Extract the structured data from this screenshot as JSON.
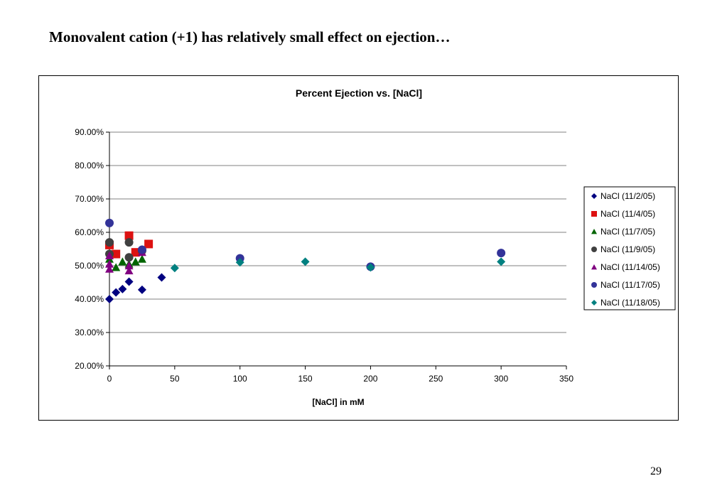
{
  "slide": {
    "title": "Monovalent cation (+1) has relatively small effect on ejection…",
    "page_number": "29"
  },
  "chart_data": {
    "type": "scatter",
    "title": "Percent Ejection vs. [NaCl]",
    "xlabel": "[NaCl] in mM",
    "ylabel": "",
    "xlim": [
      0,
      350
    ],
    "ylim": [
      0.2,
      0.9
    ],
    "x_ticks": [
      0,
      50,
      100,
      150,
      200,
      250,
      300,
      350
    ],
    "y_ticks": [
      0.2,
      0.3,
      0.4,
      0.5,
      0.6,
      0.7,
      0.8,
      0.9
    ],
    "y_tick_labels": [
      "20.00%",
      "30.00%",
      "40.00%",
      "50.00%",
      "60.00%",
      "70.00%",
      "80.00%",
      "90.00%"
    ],
    "grid": "horizontal major gridlines",
    "legend_position": "right",
    "series": [
      {
        "name": "NaCl (11/2/05)",
        "marker": "diamond",
        "color": "#000080",
        "points": [
          [
            0,
            0.4
          ],
          [
            5,
            0.42
          ],
          [
            10,
            0.43
          ],
          [
            15,
            0.452
          ],
          [
            25,
            0.428
          ],
          [
            40,
            0.465
          ]
        ]
      },
      {
        "name": "NaCl (11/4/05)",
        "marker": "square",
        "color": "#dd1111",
        "points": [
          [
            0,
            0.562
          ],
          [
            5,
            0.535
          ],
          [
            15,
            0.59
          ],
          [
            20,
            0.54
          ],
          [
            30,
            0.565
          ]
        ]
      },
      {
        "name": "NaCl (11/7/05)",
        "marker": "triangle",
        "color": "#006400",
        "points": [
          [
            0,
            0.52
          ],
          [
            5,
            0.495
          ],
          [
            10,
            0.512
          ],
          [
            15,
            0.505
          ],
          [
            20,
            0.512
          ],
          [
            25,
            0.52
          ]
        ]
      },
      {
        "name": "NaCl (11/9/05)",
        "marker": "circle",
        "color": "#404040",
        "points": [
          [
            0,
            0.57
          ],
          [
            0,
            0.535
          ],
          [
            15,
            0.57
          ],
          [
            15,
            0.525
          ],
          [
            25,
            0.545
          ]
        ]
      },
      {
        "name": "NaCl (11/14/05)",
        "marker": "triangle",
        "color": "#800080",
        "points": [
          [
            0,
            0.505
          ],
          [
            0,
            0.49
          ],
          [
            0,
            0.53
          ],
          [
            15,
            0.485
          ],
          [
            15,
            0.5
          ],
          [
            25,
            0.54
          ]
        ]
      },
      {
        "name": "NaCl (11/17/05)",
        "marker": "circle",
        "color": "#333399",
        "points": [
          [
            0,
            0.628
          ],
          [
            25,
            0.548
          ],
          [
            100,
            0.522
          ],
          [
            200,
            0.497
          ],
          [
            300,
            0.538
          ]
        ]
      },
      {
        "name": "NaCl (11/18/05)",
        "marker": "diamond",
        "color": "#008080",
        "points": [
          [
            50,
            0.493
          ],
          [
            100,
            0.51
          ],
          [
            150,
            0.512
          ],
          [
            200,
            0.495
          ],
          [
            300,
            0.512
          ]
        ]
      }
    ]
  }
}
